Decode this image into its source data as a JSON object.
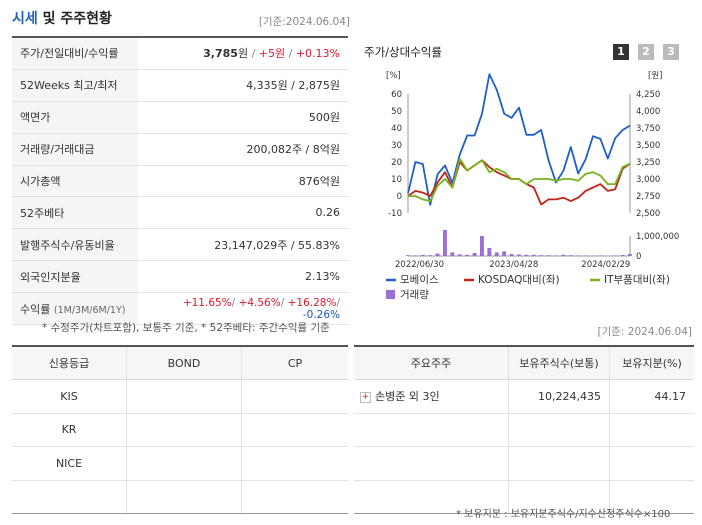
{
  "header": {
    "title_main": "시세",
    "title_rest": " 및 주주현황",
    "base_date": "[기준:2024.06.04]"
  },
  "price_table": {
    "rows": [
      {
        "label": "주가/전일대비/수익률"
      },
      {
        "label": "52Weeks 최고/최저",
        "value": "4,335원 / 2,875원"
      },
      {
        "label": "액면가",
        "value": "500원"
      },
      {
        "label": "거래량/거래대금",
        "value": "200,082주 / 8억원"
      },
      {
        "label": "시가총액",
        "value": "876억원"
      },
      {
        "label": "52주베타",
        "value": "0.26"
      },
      {
        "label": "발행주식수/유동비율",
        "value": "23,147,029주 / 55.83%"
      },
      {
        "label": "외국인지분율",
        "value": "2.13%"
      },
      {
        "label": "수익률",
        "sub": "(1M/3M/6M/1Y)"
      }
    ],
    "price": "3,785",
    "price_unit": "원",
    "sep": " / ",
    "change": "+5원",
    "change_pct": "+0.13%",
    "ret_1m": "+11.65%",
    "ret_3m": "+4.56%",
    "ret_6m": "+16.28%",
    "ret_1y": "-0.26%",
    "slash": "/ "
  },
  "footnote_left": "* 수정주가(차트포함), 보통주 기준, * 52주베타: 주간수익률 기준",
  "base_date_2": "[기준: 2024.06.04]",
  "chart_panel": {
    "title": "주가/상대수익률",
    "buttons": [
      "1",
      "2",
      "3"
    ],
    "left_unit": "[%]",
    "right_unit": "[원]",
    "left_ticks": [
      "60",
      "50",
      "40",
      "30",
      "20",
      "10",
      "0",
      "-10"
    ],
    "right_ticks": [
      "4,250",
      "4,000",
      "3,750",
      "3,500",
      "3,250",
      "3,000",
      "2,750",
      "2,500"
    ],
    "vol_ticks": [
      "1,000,000",
      "0"
    ],
    "x_ticks": [
      "2022/06/30",
      "2023/04/28",
      "2024/02/29"
    ],
    "legend": [
      "모베이스",
      "KOSDAQ대비(좌)",
      "IT부품대비(좌)",
      "거래량"
    ]
  },
  "chart_data": {
    "type": "line",
    "x_ticks": [
      "2022/06/30",
      "2023/04/28",
      "2024/02/29"
    ],
    "left_axis": {
      "unit": "[%]",
      "ylim": [
        -10,
        60
      ]
    },
    "right_axis": {
      "unit": "[원]",
      "ylim": [
        2500,
        4250
      ]
    },
    "volume_axis": {
      "ylim": [
        0,
        1000000
      ]
    },
    "series": [
      {
        "name": "모베이스",
        "axis": "right",
        "color": "#1e5fc8",
        "values": [
          2790,
          3250,
          3220,
          2620,
          3070,
          3200,
          2940,
          3360,
          3640,
          3640,
          3960,
          4540,
          4310,
          3960,
          3900,
          4050,
          3650,
          3650,
          3720,
          3270,
          2950,
          3120,
          3470,
          3080,
          3290,
          3630,
          3590,
          3300,
          3600,
          3720,
          3785
        ]
      },
      {
        "name": "KOSDAQ대비(좌)",
        "axis": "left",
        "color": "#c0261a",
        "values": [
          0,
          3,
          2,
          0,
          8,
          14,
          5,
          20,
          15,
          18,
          21,
          17,
          14,
          12,
          10,
          10,
          7,
          5,
          -5,
          -2,
          -2,
          -1,
          -3,
          -1,
          3,
          5,
          7,
          3,
          4,
          16,
          19
        ]
      },
      {
        "name": "IT부품대비(좌)",
        "axis": "left",
        "color": "#78b31e",
        "values": [
          0,
          0,
          -2,
          -3,
          6,
          10,
          5,
          22,
          15,
          18,
          21,
          14,
          16,
          14,
          10,
          10,
          7,
          10,
          10,
          10,
          9,
          10,
          10,
          9,
          13,
          14,
          12,
          7,
          7,
          17,
          19
        ]
      },
      {
        "name": "거래량",
        "axis": "volume",
        "color": "#9b6fd4",
        "values": [
          40000,
          30000,
          50000,
          40000,
          120000,
          1300000,
          180000,
          80000,
          60000,
          150000,
          1000000,
          400000,
          180000,
          230000,
          100000,
          80000,
          60000,
          60000,
          40000,
          40000,
          30000,
          60000,
          40000,
          30000,
          30000,
          20000,
          30000,
          20000,
          30000,
          50000,
          100000
        ]
      }
    ]
  },
  "credit_table": {
    "headers": [
      "신용등급",
      "BOND",
      "CP"
    ],
    "rows": [
      {
        "agency": "KIS",
        "bond": "",
        "cp": ""
      },
      {
        "agency": "KR",
        "bond": "",
        "cp": ""
      },
      {
        "agency": "NICE",
        "bond": "",
        "cp": ""
      },
      {
        "agency": "",
        "bond": "",
        "cp": ""
      }
    ]
  },
  "holders_table": {
    "headers": [
      "주요주주",
      "보유주식수(보통)",
      "보유지분(%)"
    ],
    "rows": [
      {
        "name": "손병준 외 3인",
        "shares": "10,224,435",
        "pct": "44.17"
      }
    ],
    "expand_icon": "plus-icon"
  },
  "footnote_right": "* 보유지분 : 보유지분주식수/지수산정주식수×100"
}
